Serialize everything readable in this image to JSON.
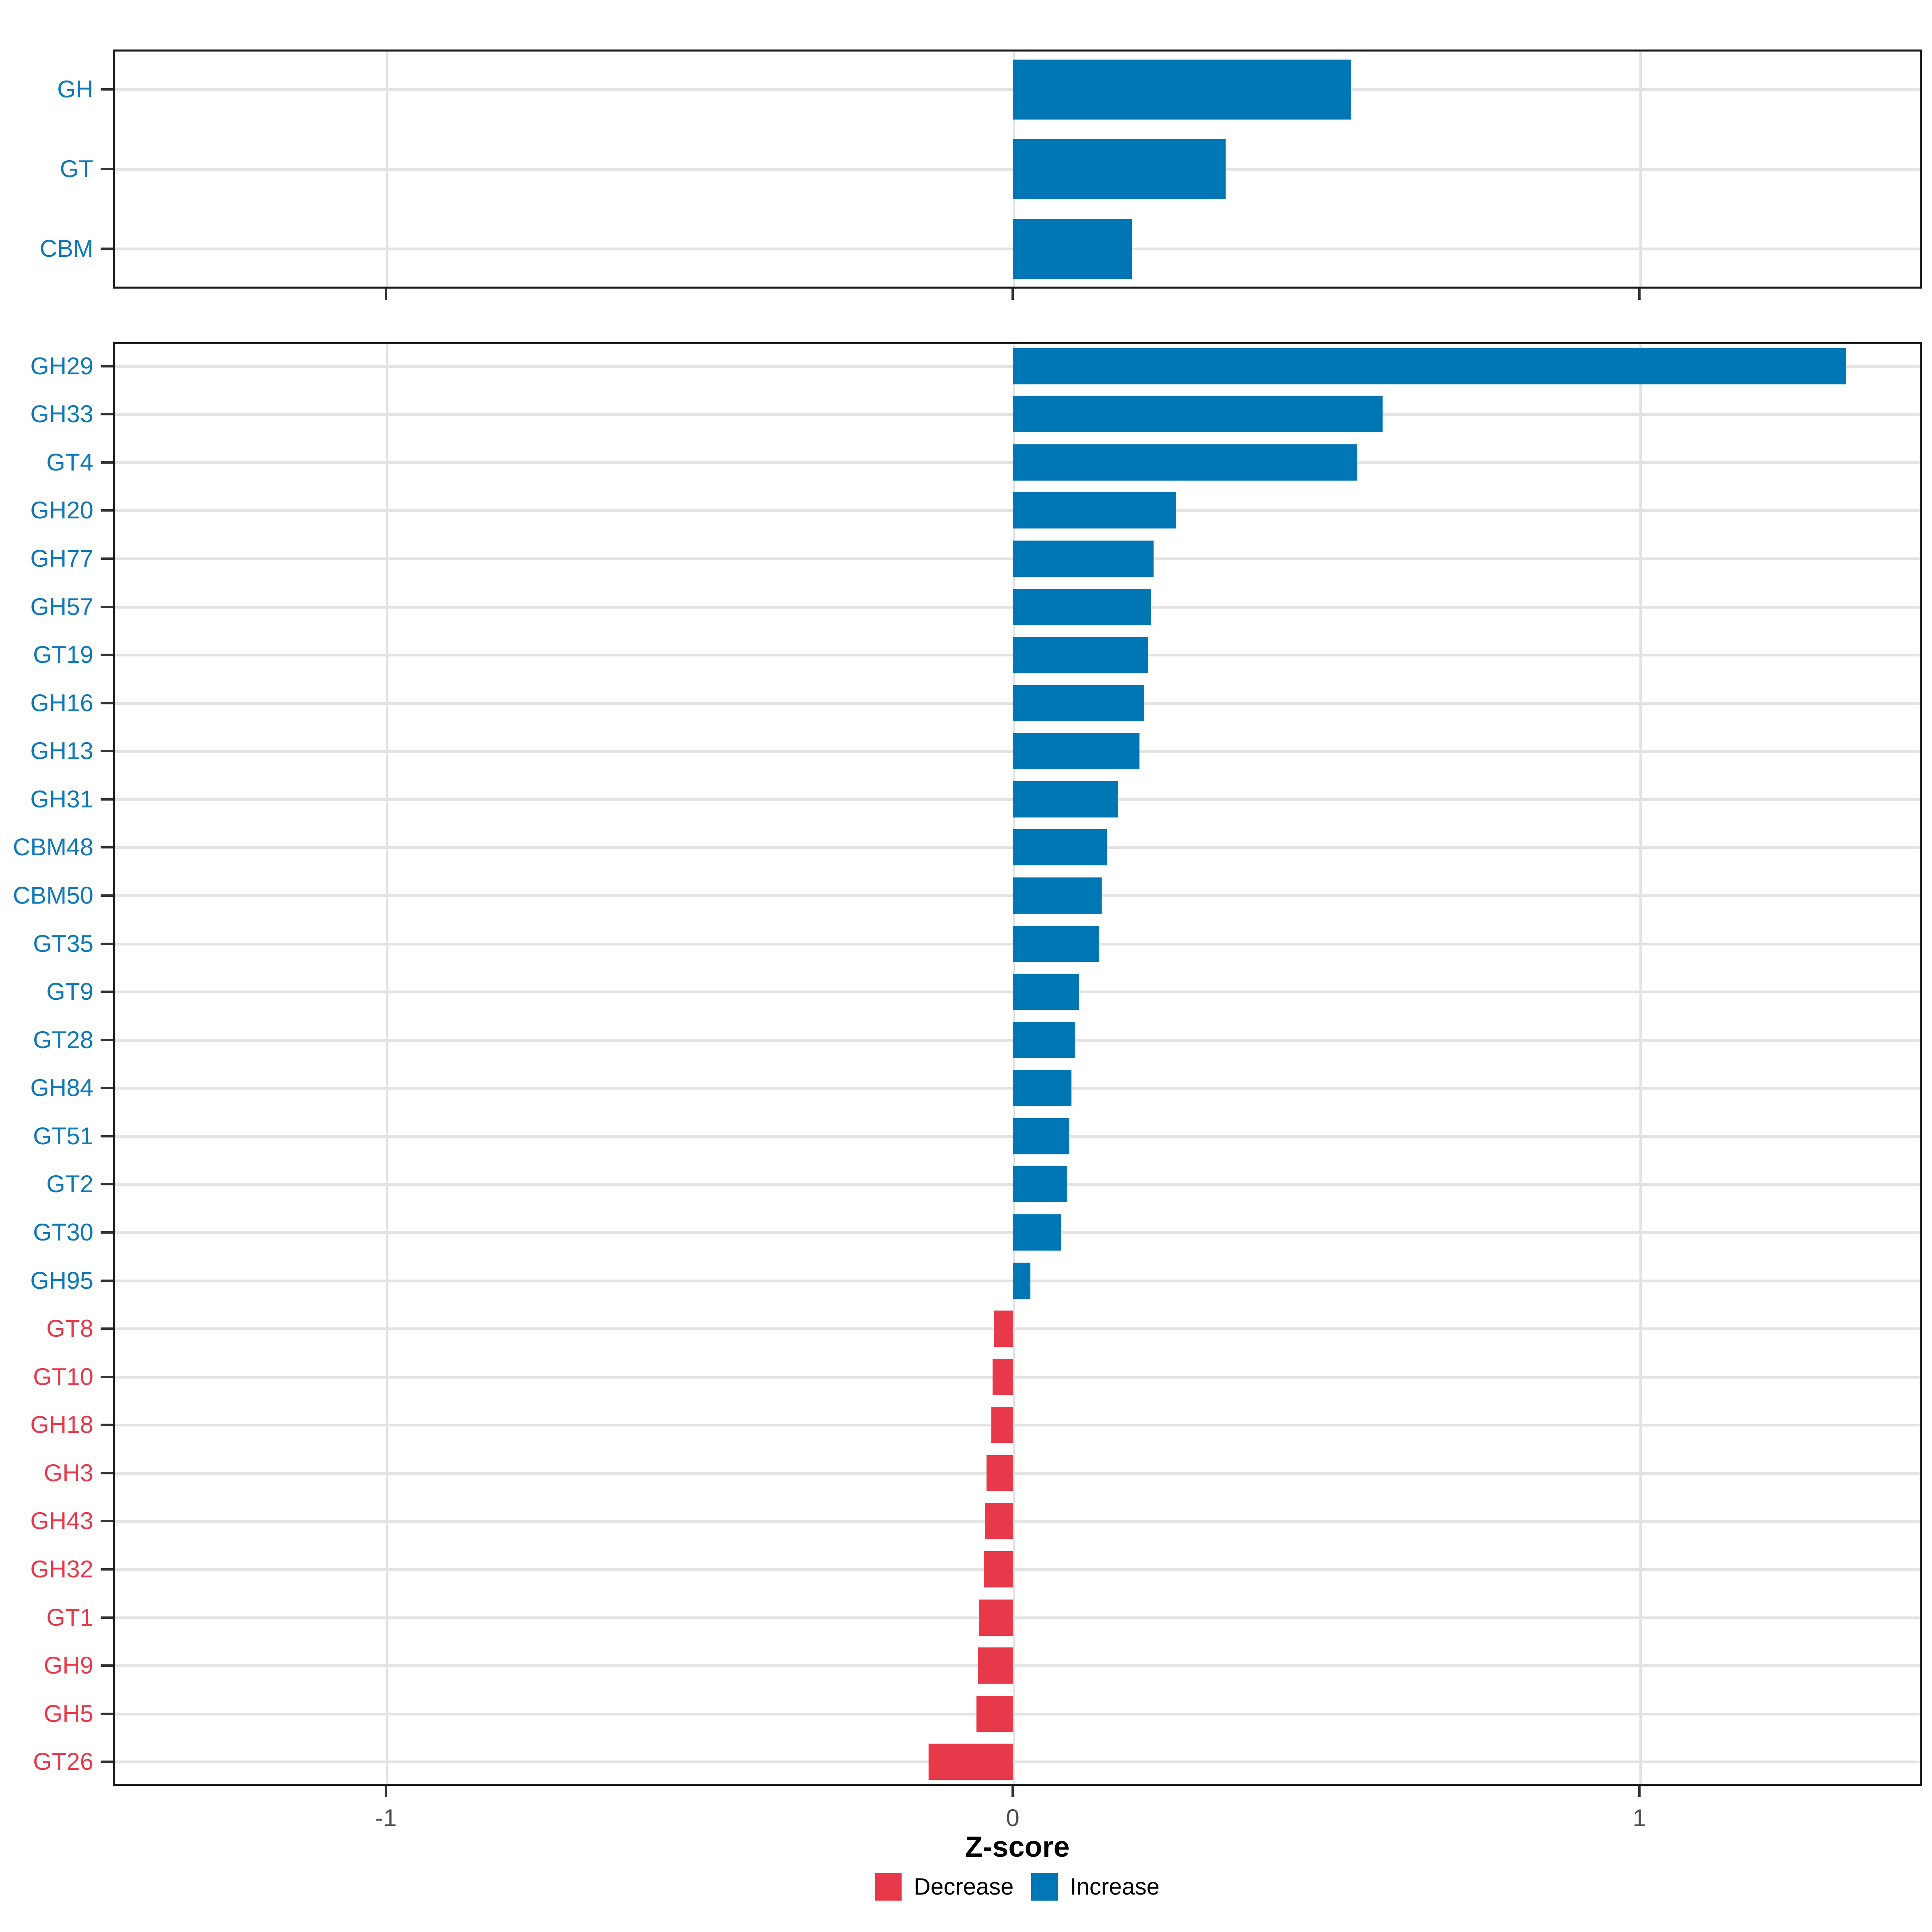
{
  "chart_data": {
    "type": "bar",
    "orientation": "horizontal",
    "title": "",
    "xlabel": "Z-score",
    "ylabel": "",
    "x_ticks": [
      -1,
      0,
      1
    ],
    "x_tick_labels": [
      "-1",
      "0",
      "1"
    ],
    "xlim": [
      -1.44,
      1.45
    ],
    "grid": "on",
    "legend_position": "bottom",
    "colors": {
      "increase": "#0076B5",
      "decrease": "#E8394B"
    },
    "text_colors": {
      "increase": "#0E78B8",
      "decrease": "#E8394B"
    },
    "legend": [
      {
        "label": "Decrease",
        "color": "#E8394B"
      },
      {
        "label": "Increase",
        "color": "#0076B5"
      }
    ],
    "panels": [
      {
        "name": "cazyme-classes",
        "categories": [
          "GH",
          "GT",
          "CBM"
        ],
        "values": [
          0.54,
          0.34,
          0.19
        ],
        "directions": [
          "Increase",
          "Increase",
          "Increase"
        ]
      },
      {
        "name": "cazyme-families",
        "categories": [
          "GH29",
          "GH33",
          "GT4",
          "GH20",
          "GH77",
          "GH57",
          "GT19",
          "GH16",
          "GH13",
          "GH31",
          "CBM48",
          "CBM50",
          "GT35",
          "GT9",
          "GT28",
          "GH84",
          "GT51",
          "GT2",
          "GT30",
          "GH95",
          "GT8",
          "GT10",
          "GH18",
          "GH3",
          "GH43",
          "GH32",
          "GT1",
          "GH9",
          "GH5",
          "GT26"
        ],
        "values": [
          1.33,
          0.59,
          0.55,
          0.26,
          0.225,
          0.221,
          0.216,
          0.21,
          0.202,
          0.168,
          0.15,
          0.142,
          0.138,
          0.106,
          0.099,
          0.094,
          0.09,
          0.087,
          0.077,
          0.028,
          -0.03,
          -0.032,
          -0.034,
          -0.042,
          -0.044,
          -0.046,
          -0.054,
          -0.056,
          -0.058,
          -0.134
        ],
        "directions": [
          "Increase",
          "Increase",
          "Increase",
          "Increase",
          "Increase",
          "Increase",
          "Increase",
          "Increase",
          "Increase",
          "Increase",
          "Increase",
          "Increase",
          "Increase",
          "Increase",
          "Increase",
          "Increase",
          "Increase",
          "Increase",
          "Increase",
          "Increase",
          "Decrease",
          "Decrease",
          "Decrease",
          "Decrease",
          "Decrease",
          "Decrease",
          "Decrease",
          "Decrease",
          "Decrease",
          "Decrease"
        ]
      }
    ]
  }
}
